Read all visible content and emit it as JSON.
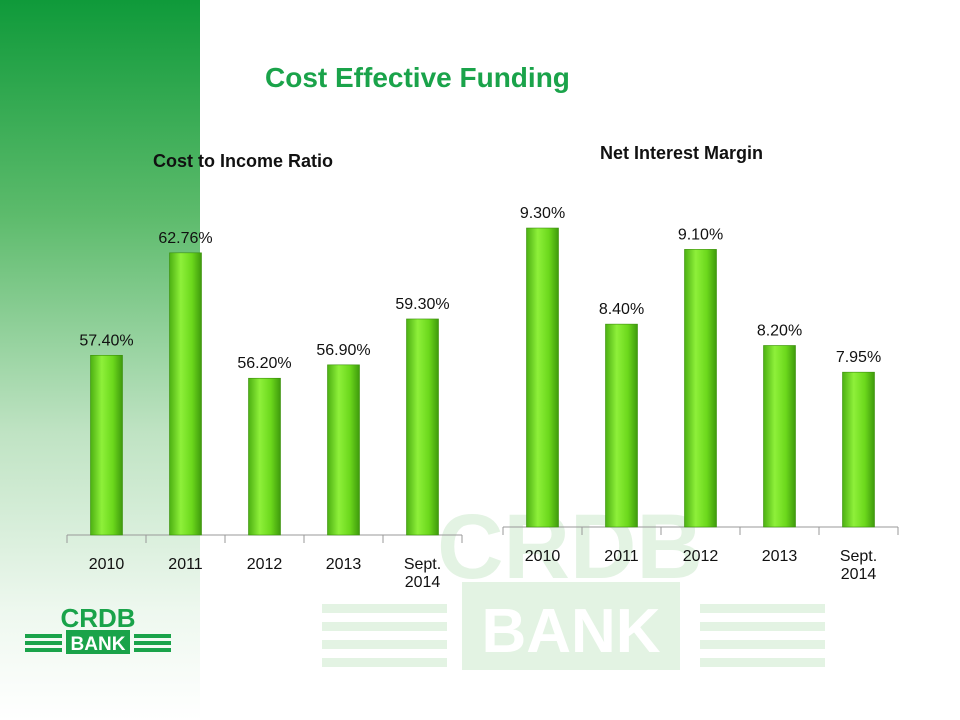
{
  "slide": {
    "title": "Cost Effective Funding"
  },
  "brand": {
    "logo_top": "CRDB",
    "logo_bottom": "BANK",
    "color": "#1aa34a",
    "watermark_color": "#e3f3e3"
  },
  "chart_data": [
    {
      "type": "bar",
      "title": "Cost to Income Ratio",
      "categories": [
        "2010",
        "2011",
        "2012",
        "2013",
        "Sept. 2014"
      ],
      "values": [
        57.4,
        62.76,
        56.2,
        56.9,
        59.3
      ],
      "data_labels": [
        "57.40%",
        "62.76%",
        "56.20%",
        "56.90%",
        "59.30%"
      ],
      "ylim": [
        48,
        65
      ],
      "bar_color": "#6cd81c",
      "grid": false,
      "legend": "none"
    },
    {
      "type": "bar",
      "title": "Net Interest Margin",
      "categories": [
        "2010",
        "2011",
        "2012",
        "2013",
        "Sept. 2014"
      ],
      "values": [
        9.3,
        8.4,
        9.1,
        8.2,
        7.95
      ],
      "data_labels": [
        "9.30%",
        "8.40%",
        "9.10%",
        "8.20%",
        "7.95%"
      ],
      "ylim": [
        6.5,
        9.6
      ],
      "bar_color": "#6cd81c",
      "grid": false,
      "legend": "none"
    }
  ]
}
